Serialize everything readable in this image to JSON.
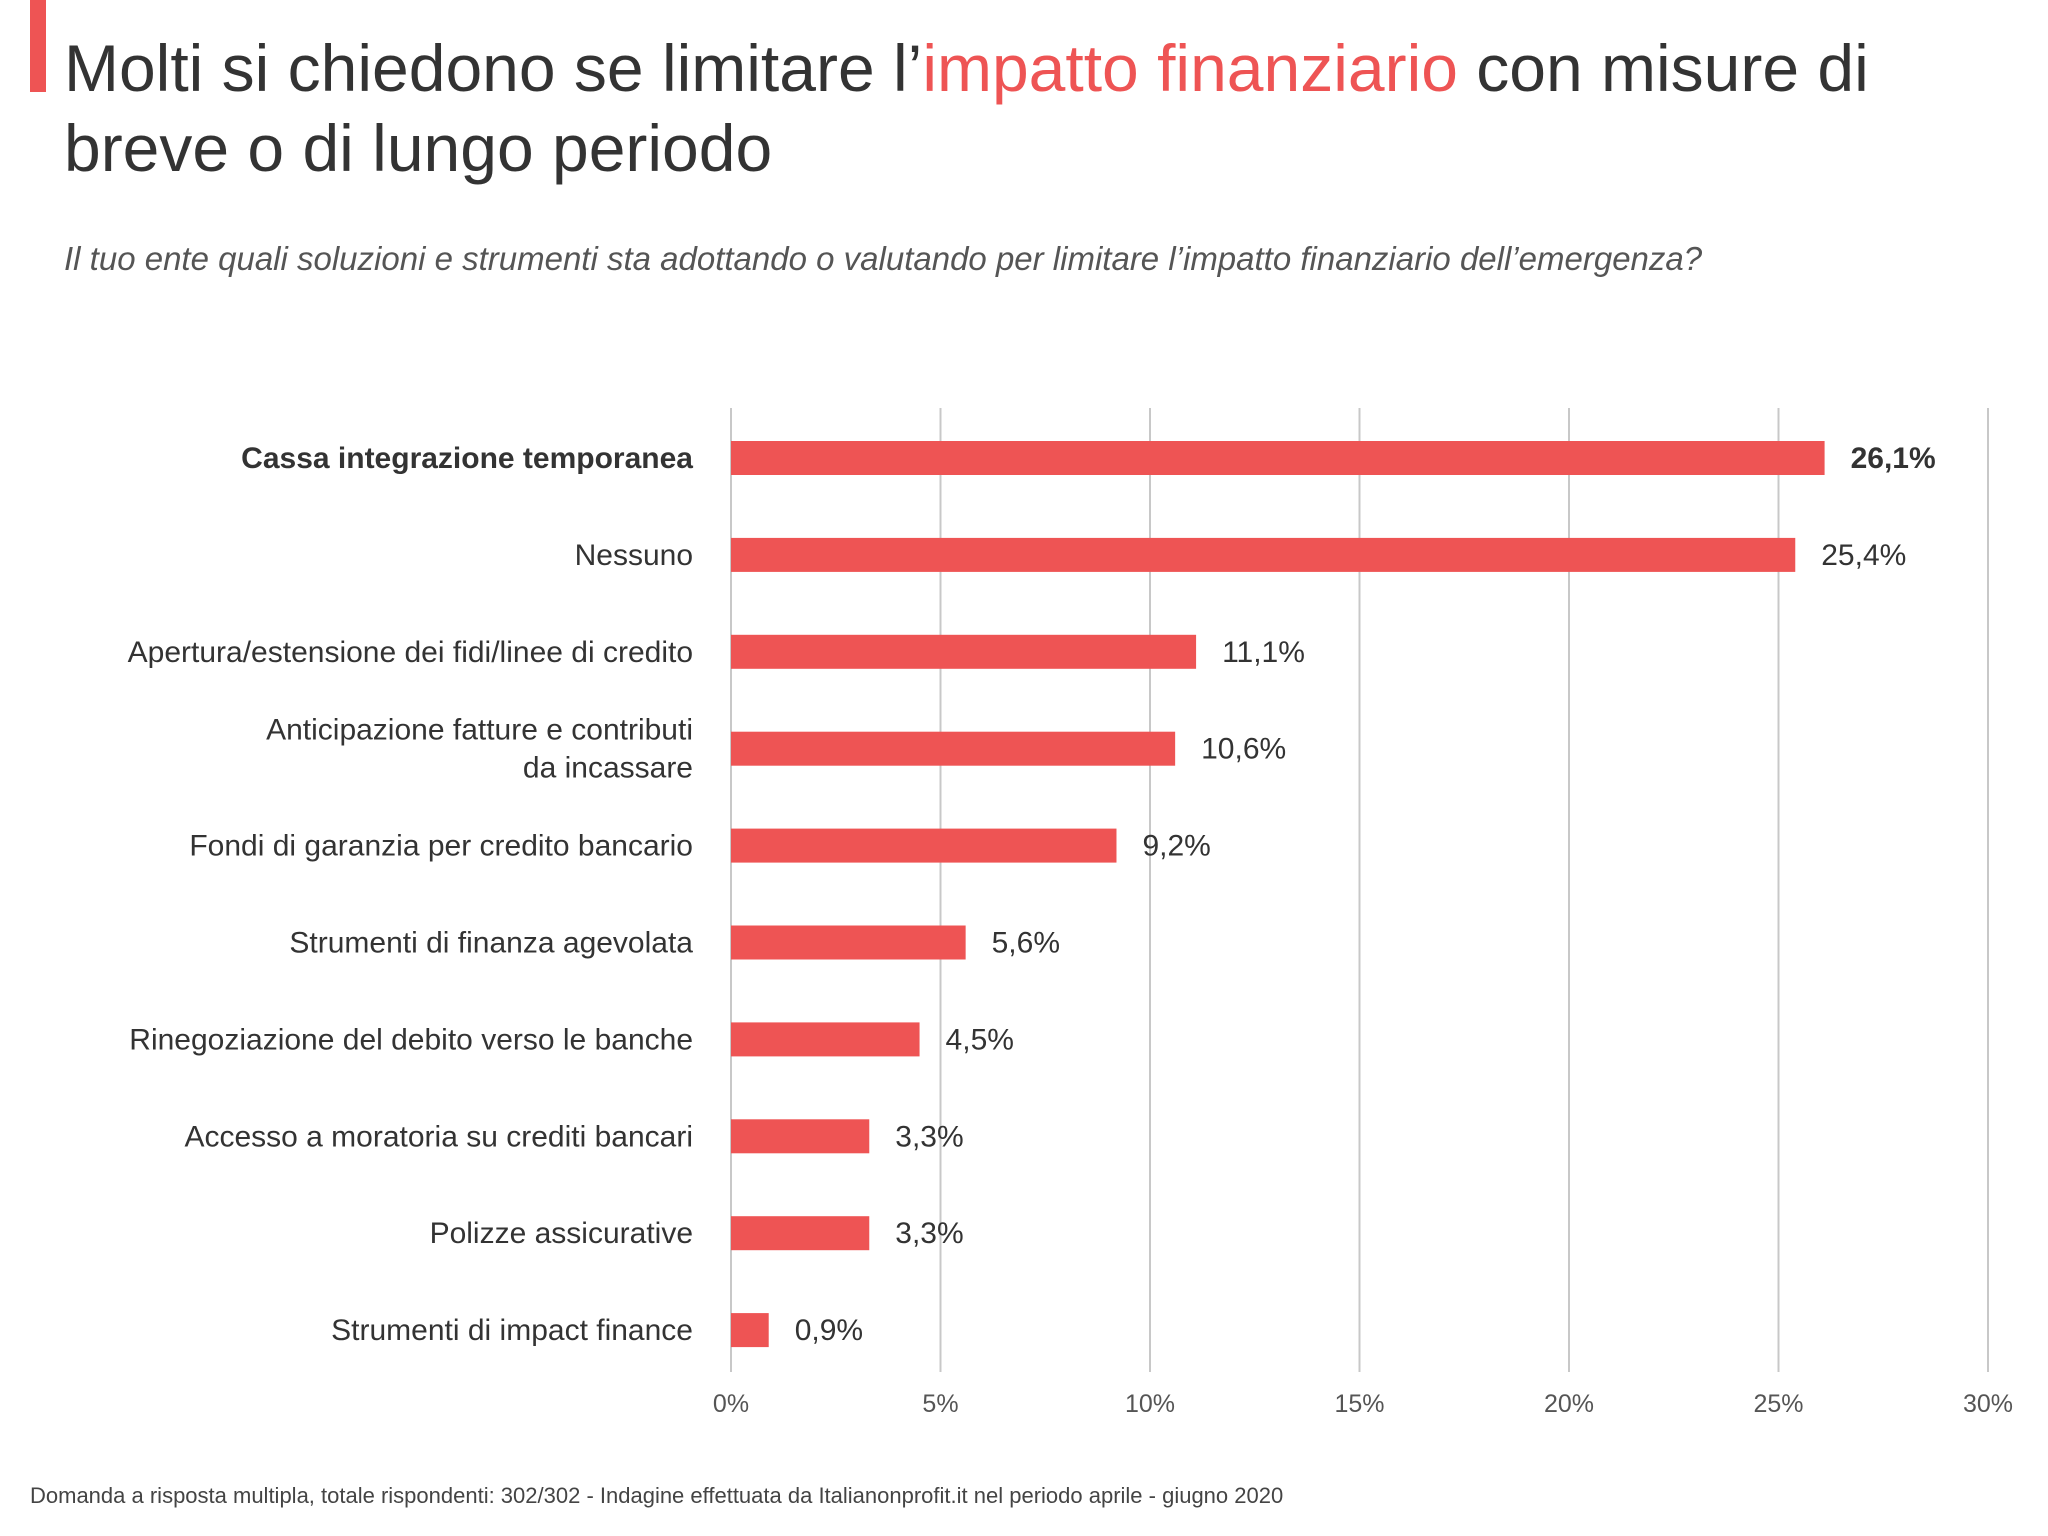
{
  "header": {
    "title_pre": "Molti si chiedono se limitare l’",
    "title_highlight": "impatto finanziario",
    "title_post": " con misure di breve o di lungo periodo",
    "subtitle": "Il tuo ente quali soluzioni e strumenti sta adottando o valutando per limitare l’impatto finanziario dell’emergenza?"
  },
  "colors": {
    "accent": "#ee5454",
    "bar": "#ee5454",
    "grid": "#c8c8c8",
    "text": "#333333",
    "tick": "#555555"
  },
  "chart_data": {
    "type": "bar",
    "orientation": "horizontal",
    "categories": [
      [
        "Cassa integrazione temporanea"
      ],
      [
        "Nessuno"
      ],
      [
        "Apertura/estensione dei fidi/linee di credito"
      ],
      [
        "Anticipazione fatture e contributi",
        "da incassare"
      ],
      [
        "Fondi di garanzia per credito bancario"
      ],
      [
        "Strumenti di finanza agevolata"
      ],
      [
        "Rinegoziazione del debito verso le banche"
      ],
      [
        "Accesso a moratoria su crediti bancari"
      ],
      [
        "Polizze assicurative"
      ],
      [
        "Strumenti di impact finance"
      ]
    ],
    "values": [
      26.1,
      25.4,
      11.1,
      10.6,
      9.2,
      5.6,
      4.5,
      3.3,
      3.3,
      0.9
    ],
    "value_labels": [
      "26,1%",
      "25,4%",
      "11,1%",
      "10,6%",
      "9,2%",
      "5,6%",
      "4,5%",
      "3,3%",
      "3,3%",
      "0,9%"
    ],
    "highlight_index": 0,
    "xlim": [
      0,
      30
    ],
    "xticks": [
      0,
      5,
      10,
      15,
      20,
      25,
      30
    ],
    "xtick_labels": [
      "0%",
      "5%",
      "10%",
      "15%",
      "20%",
      "25%",
      "30%"
    ],
    "grid": true,
    "legend": "none"
  },
  "footnote": "Domanda a risposta multipla, totale rispondenti: 302/302 - Indagine effettuata da Italianonprofit.it nel periodo aprile - giugno 2020"
}
